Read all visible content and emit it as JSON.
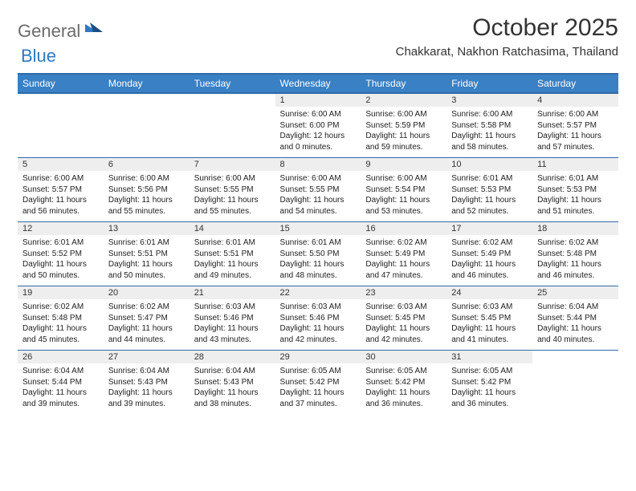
{
  "brand": {
    "word1": "General",
    "word2": "Blue",
    "word1_color": "#6b6b6b",
    "word2_color": "#2f79c2"
  },
  "title": "October 2025",
  "location": "Chakkarat, Nakhon Ratchasima, Thailand",
  "colors": {
    "header_bg": "#3a80c4",
    "header_border": "#2f6aa8",
    "daynum_bg": "#eeeeee",
    "text": "#333333",
    "page_bg": "#ffffff"
  },
  "typography": {
    "title_fontsize": 30,
    "location_fontsize": 15,
    "dayheader_fontsize": 12,
    "daynum_fontsize": 11,
    "detail_fontsize": 10
  },
  "day_headers": [
    "Sunday",
    "Monday",
    "Tuesday",
    "Wednesday",
    "Thursday",
    "Friday",
    "Saturday"
  ],
  "weeks": [
    [
      null,
      null,
      null,
      {
        "n": "1",
        "sr": "6:00 AM",
        "ss": "6:00 PM",
        "dl": "12 hours and 0 minutes."
      },
      {
        "n": "2",
        "sr": "6:00 AM",
        "ss": "5:59 PM",
        "dl": "11 hours and 59 minutes."
      },
      {
        "n": "3",
        "sr": "6:00 AM",
        "ss": "5:58 PM",
        "dl": "11 hours and 58 minutes."
      },
      {
        "n": "4",
        "sr": "6:00 AM",
        "ss": "5:57 PM",
        "dl": "11 hours and 57 minutes."
      }
    ],
    [
      {
        "n": "5",
        "sr": "6:00 AM",
        "ss": "5:57 PM",
        "dl": "11 hours and 56 minutes."
      },
      {
        "n": "6",
        "sr": "6:00 AM",
        "ss": "5:56 PM",
        "dl": "11 hours and 55 minutes."
      },
      {
        "n": "7",
        "sr": "6:00 AM",
        "ss": "5:55 PM",
        "dl": "11 hours and 55 minutes."
      },
      {
        "n": "8",
        "sr": "6:00 AM",
        "ss": "5:55 PM",
        "dl": "11 hours and 54 minutes."
      },
      {
        "n": "9",
        "sr": "6:00 AM",
        "ss": "5:54 PM",
        "dl": "11 hours and 53 minutes."
      },
      {
        "n": "10",
        "sr": "6:01 AM",
        "ss": "5:53 PM",
        "dl": "11 hours and 52 minutes."
      },
      {
        "n": "11",
        "sr": "6:01 AM",
        "ss": "5:53 PM",
        "dl": "11 hours and 51 minutes."
      }
    ],
    [
      {
        "n": "12",
        "sr": "6:01 AM",
        "ss": "5:52 PM",
        "dl": "11 hours and 50 minutes."
      },
      {
        "n": "13",
        "sr": "6:01 AM",
        "ss": "5:51 PM",
        "dl": "11 hours and 50 minutes."
      },
      {
        "n": "14",
        "sr": "6:01 AM",
        "ss": "5:51 PM",
        "dl": "11 hours and 49 minutes."
      },
      {
        "n": "15",
        "sr": "6:01 AM",
        "ss": "5:50 PM",
        "dl": "11 hours and 48 minutes."
      },
      {
        "n": "16",
        "sr": "6:02 AM",
        "ss": "5:49 PM",
        "dl": "11 hours and 47 minutes."
      },
      {
        "n": "17",
        "sr": "6:02 AM",
        "ss": "5:49 PM",
        "dl": "11 hours and 46 minutes."
      },
      {
        "n": "18",
        "sr": "6:02 AM",
        "ss": "5:48 PM",
        "dl": "11 hours and 46 minutes."
      }
    ],
    [
      {
        "n": "19",
        "sr": "6:02 AM",
        "ss": "5:48 PM",
        "dl": "11 hours and 45 minutes."
      },
      {
        "n": "20",
        "sr": "6:02 AM",
        "ss": "5:47 PM",
        "dl": "11 hours and 44 minutes."
      },
      {
        "n": "21",
        "sr": "6:03 AM",
        "ss": "5:46 PM",
        "dl": "11 hours and 43 minutes."
      },
      {
        "n": "22",
        "sr": "6:03 AM",
        "ss": "5:46 PM",
        "dl": "11 hours and 42 minutes."
      },
      {
        "n": "23",
        "sr": "6:03 AM",
        "ss": "5:45 PM",
        "dl": "11 hours and 42 minutes."
      },
      {
        "n": "24",
        "sr": "6:03 AM",
        "ss": "5:45 PM",
        "dl": "11 hours and 41 minutes."
      },
      {
        "n": "25",
        "sr": "6:04 AM",
        "ss": "5:44 PM",
        "dl": "11 hours and 40 minutes."
      }
    ],
    [
      {
        "n": "26",
        "sr": "6:04 AM",
        "ss": "5:44 PM",
        "dl": "11 hours and 39 minutes."
      },
      {
        "n": "27",
        "sr": "6:04 AM",
        "ss": "5:43 PM",
        "dl": "11 hours and 39 minutes."
      },
      {
        "n": "28",
        "sr": "6:04 AM",
        "ss": "5:43 PM",
        "dl": "11 hours and 38 minutes."
      },
      {
        "n": "29",
        "sr": "6:05 AM",
        "ss": "5:42 PM",
        "dl": "11 hours and 37 minutes."
      },
      {
        "n": "30",
        "sr": "6:05 AM",
        "ss": "5:42 PM",
        "dl": "11 hours and 36 minutes."
      },
      {
        "n": "31",
        "sr": "6:05 AM",
        "ss": "5:42 PM",
        "dl": "11 hours and 36 minutes."
      },
      null
    ]
  ],
  "labels": {
    "sunrise": "Sunrise:",
    "sunset": "Sunset:",
    "daylight": "Daylight:"
  }
}
